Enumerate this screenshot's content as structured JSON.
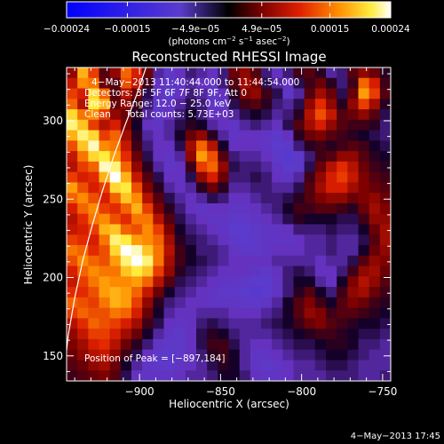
{
  "chart_data": {
    "type": "heatmap",
    "title": "Reconstructed RHESSI Image",
    "xlabel": "Heliocentric X (arcsec)",
    "ylabel": "Heliocentric Y (arcsec)",
    "xlim": [
      -945,
      -745
    ],
    "ylim": [
      134,
      334
    ],
    "xticks": [
      -900,
      -850,
      -800,
      -750
    ],
    "xtick_labels": [
      "−900",
      "−850",
      "−800",
      "−750"
    ],
    "yticks": [
      150,
      200,
      250,
      300
    ],
    "ytick_labels": [
      "150",
      "200",
      "250",
      "300"
    ],
    "colorbar": {
      "range": [
        -0.00024,
        0.00024
      ],
      "ticks": [
        -0.00024,
        -0.00015,
        -4.9e-05,
        4.9e-05,
        0.00015,
        0.00024
      ],
      "tick_labels": [
        "−0.00024",
        "−0.00015",
        "−4.9e−05",
        "4.9e−05",
        "0.00015",
        "0.00024"
      ],
      "unit_main": "(photons cm",
      "unit_exp1": "−2",
      "unit_mid1": " s",
      "unit_exp2": "−1",
      "unit_mid2": " asec",
      "unit_exp3": "−2",
      "unit_close": ")"
    },
    "annotations": {
      "time_range": "4−May−2013 11:40:44.000 to 11:44:54.000",
      "detectors": "Detectors: 3F 5F 6F 7F 8F 9F, Att 0",
      "energy": "Energy Range: 12.0 − 25.0 keV",
      "clean": "Clean     Total counts: 5.73E+03",
      "peak": "Position of Peak = [−897,184]"
    },
    "timestamp": "4−May−2013 17:45",
    "peak_position": [
      -897,
      184
    ],
    "limb": [
      [
        -896,
        334
      ],
      [
        -902,
        316
      ],
      [
        -909,
        297
      ],
      [
        -916,
        277
      ],
      [
        -923,
        255
      ],
      [
        -929,
        234
      ],
      [
        -935,
        211
      ],
      [
        -940,
        187
      ],
      [
        -944,
        163
      ],
      [
        -947,
        134
      ]
    ],
    "grid_note": "intensity grid values in units of 1e-6 photons cm-2 s-1 asec-2; rows ordered from top (y=334) to bottom (y=134), columns from x=-945 to x=-745",
    "grid": [
      [
        60,
        180,
        120,
        30,
        60,
        140,
        100,
        40,
        -30,
        -60,
        -40,
        -20,
        -30,
        -40,
        -20,
        40,
        60,
        30,
        -20,
        -40,
        -20,
        20,
        30,
        10,
        -30,
        -20,
        30,
        60,
        40,
        10
      ],
      [
        90,
        160,
        150,
        40,
        30,
        130,
        90,
        20,
        -40,
        -60,
        -50,
        -30,
        -40,
        -50,
        -20,
        30,
        70,
        50,
        -10,
        -30,
        -40,
        -10,
        20,
        40,
        10,
        -20,
        20,
        140,
        100,
        20
      ],
      [
        120,
        100,
        200,
        140,
        30,
        80,
        40,
        -10,
        -50,
        -70,
        -40,
        -20,
        -30,
        -60,
        -40,
        10,
        50,
        60,
        20,
        -10,
        -50,
        -30,
        30,
        70,
        40,
        -10,
        40,
        170,
        120,
        30
      ],
      [
        140,
        80,
        210,
        180,
        40,
        60,
        20,
        -20,
        -60,
        -50,
        -30,
        -10,
        -20,
        -50,
        -50,
        -10,
        20,
        30,
        10,
        -20,
        -30,
        -10,
        60,
        110,
        60,
        10,
        60,
        120,
        70,
        10
      ],
      [
        200,
        150,
        160,
        120,
        60,
        40,
        10,
        -30,
        -60,
        -40,
        -20,
        0,
        -20,
        -40,
        -40,
        -30,
        -10,
        0,
        -10,
        -30,
        -20,
        10,
        80,
        130,
        90,
        30,
        40,
        60,
        30,
        -10
      ],
      [
        220,
        190,
        120,
        80,
        100,
        50,
        0,
        -40,
        -50,
        -30,
        -10,
        10,
        0,
        -30,
        -40,
        -50,
        -30,
        -20,
        -30,
        -40,
        -10,
        30,
        70,
        100,
        60,
        30,
        20,
        20,
        10,
        -20
      ],
      [
        180,
        220,
        200,
        120,
        140,
        70,
        10,
        -30,
        -40,
        -30,
        0,
        40,
        60,
        10,
        -30,
        -50,
        -40,
        -40,
        -50,
        -60,
        -40,
        10,
        40,
        50,
        30,
        20,
        10,
        0,
        -10,
        -20
      ],
      [
        130,
        190,
        230,
        160,
        150,
        90,
        20,
        -20,
        -40,
        -40,
        -10,
        70,
        140,
        80,
        0,
        -40,
        -40,
        -40,
        -50,
        -70,
        -60,
        -20,
        10,
        20,
        10,
        20,
        30,
        20,
        0,
        -10
      ],
      [
        90,
        150,
        200,
        210,
        170,
        110,
        40,
        -10,
        -40,
        -50,
        -30,
        60,
        170,
        130,
        30,
        -20,
        -30,
        -30,
        -40,
        -60,
        -80,
        -60,
        -20,
        20,
        30,
        60,
        60,
        30,
        10,
        0
      ],
      [
        80,
        120,
        140,
        230,
        220,
        140,
        60,
        10,
        -30,
        -50,
        -40,
        20,
        120,
        140,
        60,
        -10,
        -20,
        -20,
        -30,
        -50,
        -70,
        -60,
        -10,
        40,
        80,
        110,
        80,
        40,
        20,
        10
      ],
      [
        120,
        100,
        110,
        180,
        240,
        180,
        90,
        30,
        -10,
        -40,
        -40,
        -10,
        60,
        100,
        40,
        -20,
        -20,
        -10,
        -20,
        -40,
        -50,
        -30,
        20,
        60,
        100,
        120,
        90,
        50,
        30,
        20
      ],
      [
        170,
        130,
        100,
        120,
        200,
        210,
        130,
        50,
        10,
        -30,
        -40,
        -30,
        10,
        40,
        10,
        -30,
        -30,
        -20,
        -20,
        -30,
        -30,
        -10,
        30,
        70,
        100,
        100,
        70,
        50,
        40,
        30
      ],
      [
        140,
        160,
        130,
        100,
        140,
        190,
        160,
        80,
        30,
        -10,
        -30,
        -40,
        -30,
        -10,
        -20,
        -40,
        -40,
        -30,
        -20,
        -20,
        -10,
        10,
        30,
        50,
        60,
        60,
        40,
        50,
        60,
        40
      ],
      [
        100,
        140,
        160,
        120,
        110,
        140,
        180,
        120,
        50,
        10,
        -20,
        -40,
        -50,
        -40,
        -40,
        -50,
        -50,
        -40,
        -30,
        -20,
        0,
        20,
        20,
        30,
        30,
        20,
        10,
        40,
        70,
        50
      ],
      [
        80,
        110,
        150,
        160,
        130,
        110,
        150,
        150,
        80,
        30,
        -10,
        -30,
        -40,
        -50,
        -50,
        -60,
        -60,
        -50,
        -40,
        -30,
        -10,
        10,
        0,
        0,
        0,
        -10,
        -10,
        20,
        60,
        60
      ],
      [
        90,
        100,
        120,
        180,
        190,
        140,
        130,
        160,
        120,
        50,
        0,
        -20,
        -30,
        -40,
        -50,
        -70,
        -70,
        -60,
        -50,
        -50,
        -40,
        -20,
        -20,
        -20,
        -10,
        -20,
        -20,
        0,
        40,
        70
      ],
      [
        120,
        110,
        100,
        150,
        220,
        210,
        170,
        160,
        140,
        70,
        10,
        -10,
        -20,
        -30,
        -40,
        -60,
        -70,
        -60,
        -50,
        -50,
        -50,
        -40,
        -30,
        -30,
        -20,
        -30,
        -30,
        -10,
        30,
        70
      ],
      [
        150,
        140,
        110,
        130,
        200,
        240,
        230,
        190,
        150,
        80,
        20,
        0,
        -20,
        -20,
        -30,
        -50,
        -60,
        -60,
        -50,
        -40,
        -40,
        -40,
        -30,
        -30,
        -20,
        -30,
        -30,
        0,
        40,
        60
      ],
      [
        130,
        160,
        140,
        130,
        170,
        220,
        240,
        220,
        150,
        70,
        20,
        0,
        -10,
        -20,
        -30,
        -40,
        -40,
        -40,
        -40,
        -30,
        -30,
        -30,
        -30,
        -40,
        -30,
        -30,
        -10,
        30,
        60,
        50
      ],
      [
        100,
        140,
        160,
        150,
        150,
        190,
        210,
        190,
        120,
        60,
        10,
        -10,
        -20,
        -30,
        -40,
        -40,
        -40,
        -50,
        -60,
        -40,
        -20,
        -10,
        -20,
        -40,
        -40,
        -20,
        20,
        60,
        70,
        40
      ],
      [
        90,
        120,
        150,
        170,
        160,
        160,
        170,
        140,
        80,
        30,
        -10,
        -20,
        -30,
        -40,
        -50,
        -50,
        -60,
        -70,
        -70,
        -50,
        -20,
        0,
        0,
        -30,
        -40,
        0,
        50,
        80,
        60,
        30
      ],
      [
        110,
        110,
        130,
        170,
        180,
        170,
        140,
        90,
        40,
        0,
        -20,
        -30,
        -40,
        -50,
        -60,
        -60,
        -70,
        -80,
        -70,
        -50,
        -20,
        10,
        30,
        0,
        -20,
        20,
        60,
        70,
        40,
        20
      ],
      [
        140,
        130,
        120,
        150,
        180,
        170,
        120,
        60,
        10,
        -20,
        -30,
        -40,
        -40,
        -50,
        -50,
        -50,
        -60,
        -60,
        -50,
        -30,
        0,
        30,
        50,
        20,
        0,
        30,
        50,
        40,
        20,
        10
      ],
      [
        120,
        140,
        130,
        130,
        150,
        140,
        100,
        40,
        0,
        -30,
        -40,
        -40,
        -30,
        -30,
        -30,
        -40,
        -40,
        -40,
        -30,
        -20,
        0,
        30,
        60,
        50,
        20,
        30,
        30,
        20,
        10,
        0
      ],
      [
        80,
        110,
        140,
        130,
        120,
        100,
        70,
        20,
        -10,
        -40,
        -50,
        -40,
        -20,
        -10,
        -20,
        -30,
        -30,
        -30,
        -20,
        -10,
        0,
        20,
        40,
        50,
        30,
        20,
        10,
        0,
        0,
        -10
      ],
      [
        60,
        90,
        120,
        120,
        100,
        70,
        40,
        0,
        -30,
        -50,
        -60,
        -40,
        -10,
        10,
        0,
        -20,
        -30,
        -30,
        -30,
        -20,
        -10,
        0,
        10,
        20,
        20,
        10,
        0,
        -10,
        -10,
        -20
      ],
      [
        50,
        70,
        100,
        110,
        80,
        40,
        10,
        -20,
        -50,
        -60,
        -60,
        -40,
        -10,
        20,
        20,
        -10,
        -30,
        -40,
        -40,
        -30,
        -20,
        -10,
        -10,
        0,
        10,
        10,
        0,
        -20,
        -20,
        -30
      ],
      [
        40,
        60,
        80,
        90,
        60,
        20,
        -10,
        -40,
        -60,
        -70,
        -60,
        -40,
        -20,
        10,
        20,
        0,
        -30,
        -50,
        -50,
        -40,
        -30,
        -20,
        -20,
        -10,
        0,
        0,
        -10,
        -20,
        -30,
        -30
      ],
      [
        30,
        40,
        60,
        70,
        40,
        0,
        -30,
        -50,
        -60,
        -60,
        -50,
        -40,
        -30,
        -10,
        10,
        0,
        -30,
        -50,
        -60,
        -50,
        -40,
        -30,
        -30,
        -20,
        -10,
        -10,
        -20,
        -30,
        -30,
        -30
      ],
      [
        20,
        30,
        40,
        50,
        30,
        -10,
        -40,
        -50,
        -50,
        -50,
        -40,
        -30,
        -30,
        -20,
        0,
        0,
        -20,
        -40,
        -50,
        -50,
        -40,
        -30,
        -30,
        -30,
        -20,
        -20,
        -20,
        -30,
        -30,
        -20
      ]
    ]
  }
}
